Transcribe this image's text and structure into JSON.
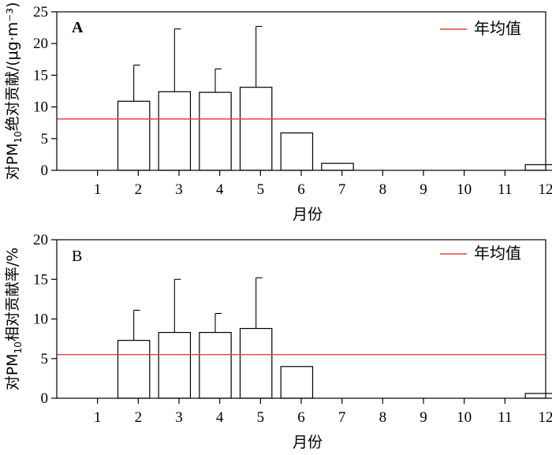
{
  "colors": {
    "mean_line": "#e0473a",
    "axis": "#000000",
    "bar_fill": "#ffffff"
  },
  "chart_data": [
    {
      "type": "bar",
      "panel_label": "A",
      "categories": [
        "1",
        "2",
        "3",
        "4",
        "5",
        "6",
        "7",
        "8",
        "9",
        "10",
        "11",
        "12"
      ],
      "values": [
        0,
        10.9,
        12.4,
        12.3,
        13.1,
        5.9,
        1.1,
        0,
        0,
        0,
        0,
        0.9
      ],
      "error_upper": [
        0,
        16.6,
        22.3,
        16.0,
        22.7,
        5.9,
        1.1,
        0,
        0,
        0,
        0,
        0.9
      ],
      "mean_line": 8.1,
      "legend": {
        "label": "年均值",
        "position": "top-right"
      },
      "xlabel": "月份",
      "ylabel_prefix": "对PM",
      "ylabel_sub": "10",
      "ylabel_suffix": "绝对贡献/(μg·m⁻³)",
      "ylim": [
        0,
        25
      ],
      "yticks": [
        0,
        5,
        10,
        15,
        20,
        25
      ],
      "ytick_labels": [
        "0",
        "5",
        "10",
        "15",
        "20",
        "25"
      ],
      "grid": false
    },
    {
      "type": "bar",
      "panel_label": "B",
      "categories": [
        "1",
        "2",
        "3",
        "4",
        "5",
        "6",
        "7",
        "8",
        "9",
        "10",
        "11",
        "12"
      ],
      "values": [
        0,
        7.3,
        8.3,
        8.3,
        8.8,
        4.0,
        0,
        0,
        0,
        0,
        0,
        0.6
      ],
      "error_upper": [
        0,
        11.1,
        15.0,
        10.7,
        15.2,
        4.0,
        0,
        0,
        0,
        0,
        0,
        0.6
      ],
      "mean_line": 5.5,
      "legend": {
        "label": "年均值",
        "position": "top-right"
      },
      "xlabel": "月份",
      "ylabel_prefix": "对PM",
      "ylabel_sub": "10",
      "ylabel_suffix": "相对贡献率/%",
      "ylim": [
        0,
        20
      ],
      "yticks": [
        0,
        5,
        10,
        15,
        20
      ],
      "ytick_labels": [
        "0",
        "5",
        "10",
        "15",
        "20"
      ],
      "grid": false
    }
  ]
}
